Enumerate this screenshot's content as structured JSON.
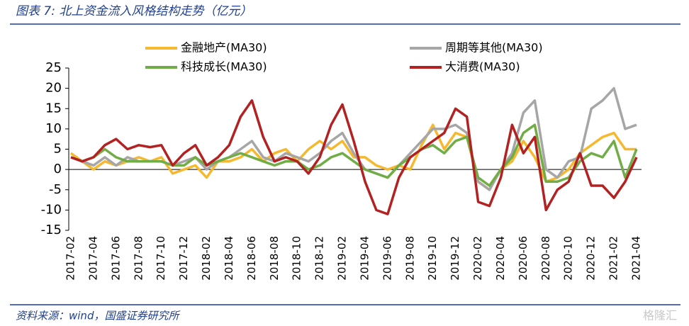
{
  "chart_data": {
    "type": "line",
    "title": "图表 7: 北上资金流入风格结构走势（亿元）",
    "source": "资料来源：wind，国盛证券研究所",
    "watermark": "格隆汇",
    "categories": [
      "2017-02",
      null,
      "2017-04",
      null,
      "2017-06",
      null,
      "2017-08",
      null,
      "2017-10",
      null,
      "2017-12",
      null,
      "2018-02",
      null,
      "2018-04",
      null,
      "2018-06",
      null,
      "2018-08",
      null,
      "2018-10",
      null,
      "2018-12",
      null,
      "2019-02",
      null,
      "2019-04",
      null,
      "2019-06",
      null,
      "2019-08",
      null,
      "2019-10",
      null,
      "2019-12",
      null,
      "2020-02",
      null,
      "2020-04",
      null,
      "2020-06",
      null,
      "2020-08",
      null,
      "2020-10",
      null,
      "2020-12",
      null,
      "2021-02",
      null,
      "2021-04"
    ],
    "series": [
      {
        "name": "金融地产(MA30)",
        "color": "#f5b82e",
        "values": [
          4,
          2,
          0,
          2,
          1,
          2,
          3,
          2,
          3,
          -1,
          0,
          1,
          -2,
          2,
          2,
          3,
          5,
          2,
          4,
          5,
          2,
          5,
          7,
          5,
          7,
          3,
          3,
          1,
          0,
          1,
          0,
          6,
          11,
          5,
          9,
          8,
          -3,
          -5,
          0,
          2,
          7,
          3,
          -3,
          -2,
          0,
          4,
          6,
          8,
          9,
          5,
          5
        ]
      },
      {
        "name": "周期等其他(MA30)",
        "color": "#a6a6a6",
        "values": [
          3,
          2,
          1,
          3,
          1,
          3,
          2,
          2,
          2,
          1,
          2,
          3,
          0,
          2,
          3,
          5,
          7,
          3,
          2,
          4,
          3,
          2,
          4,
          7,
          9,
          4,
          0,
          -1,
          -2,
          1,
          4,
          7,
          10,
          10,
          11,
          9,
          -3,
          -5,
          0,
          4,
          14,
          17,
          0,
          -2,
          2,
          3,
          15,
          17,
          20,
          10,
          11
        ]
      },
      {
        "name": "科技成长(MA30)",
        "color": "#70ad47",
        "values": [
          3,
          2,
          3,
          5,
          3,
          2,
          2,
          2,
          2,
          1,
          1,
          3,
          1,
          2,
          3,
          4,
          3,
          2,
          1,
          2,
          2,
          0,
          1,
          3,
          4,
          2,
          0,
          -1,
          -2,
          1,
          3,
          5,
          6,
          4,
          7,
          8,
          -2,
          -4,
          0,
          3,
          9,
          11,
          -3,
          -3,
          -2,
          2,
          4,
          3,
          7,
          -2,
          5
        ]
      },
      {
        "name": "大消费(MA30)",
        "color": "#b22222",
        "values": [
          3,
          2,
          3,
          6,
          7.5,
          5,
          6,
          5.5,
          6,
          1,
          4,
          6,
          1,
          3,
          6,
          13,
          17,
          8,
          2,
          3,
          2,
          -1,
          3,
          11,
          16,
          7,
          -3,
          -10,
          -11,
          -2,
          3,
          5,
          7,
          9,
          15,
          13,
          -8,
          -9,
          -2,
          11,
          4,
          8,
          -10,
          -5,
          -3,
          4,
          -4,
          -4,
          -7,
          -3,
          3
        ]
      }
    ],
    "ylim": [
      -15,
      25
    ],
    "yticks": [
      -15,
      -10,
      -5,
      0,
      5,
      10,
      15,
      20,
      25
    ]
  }
}
